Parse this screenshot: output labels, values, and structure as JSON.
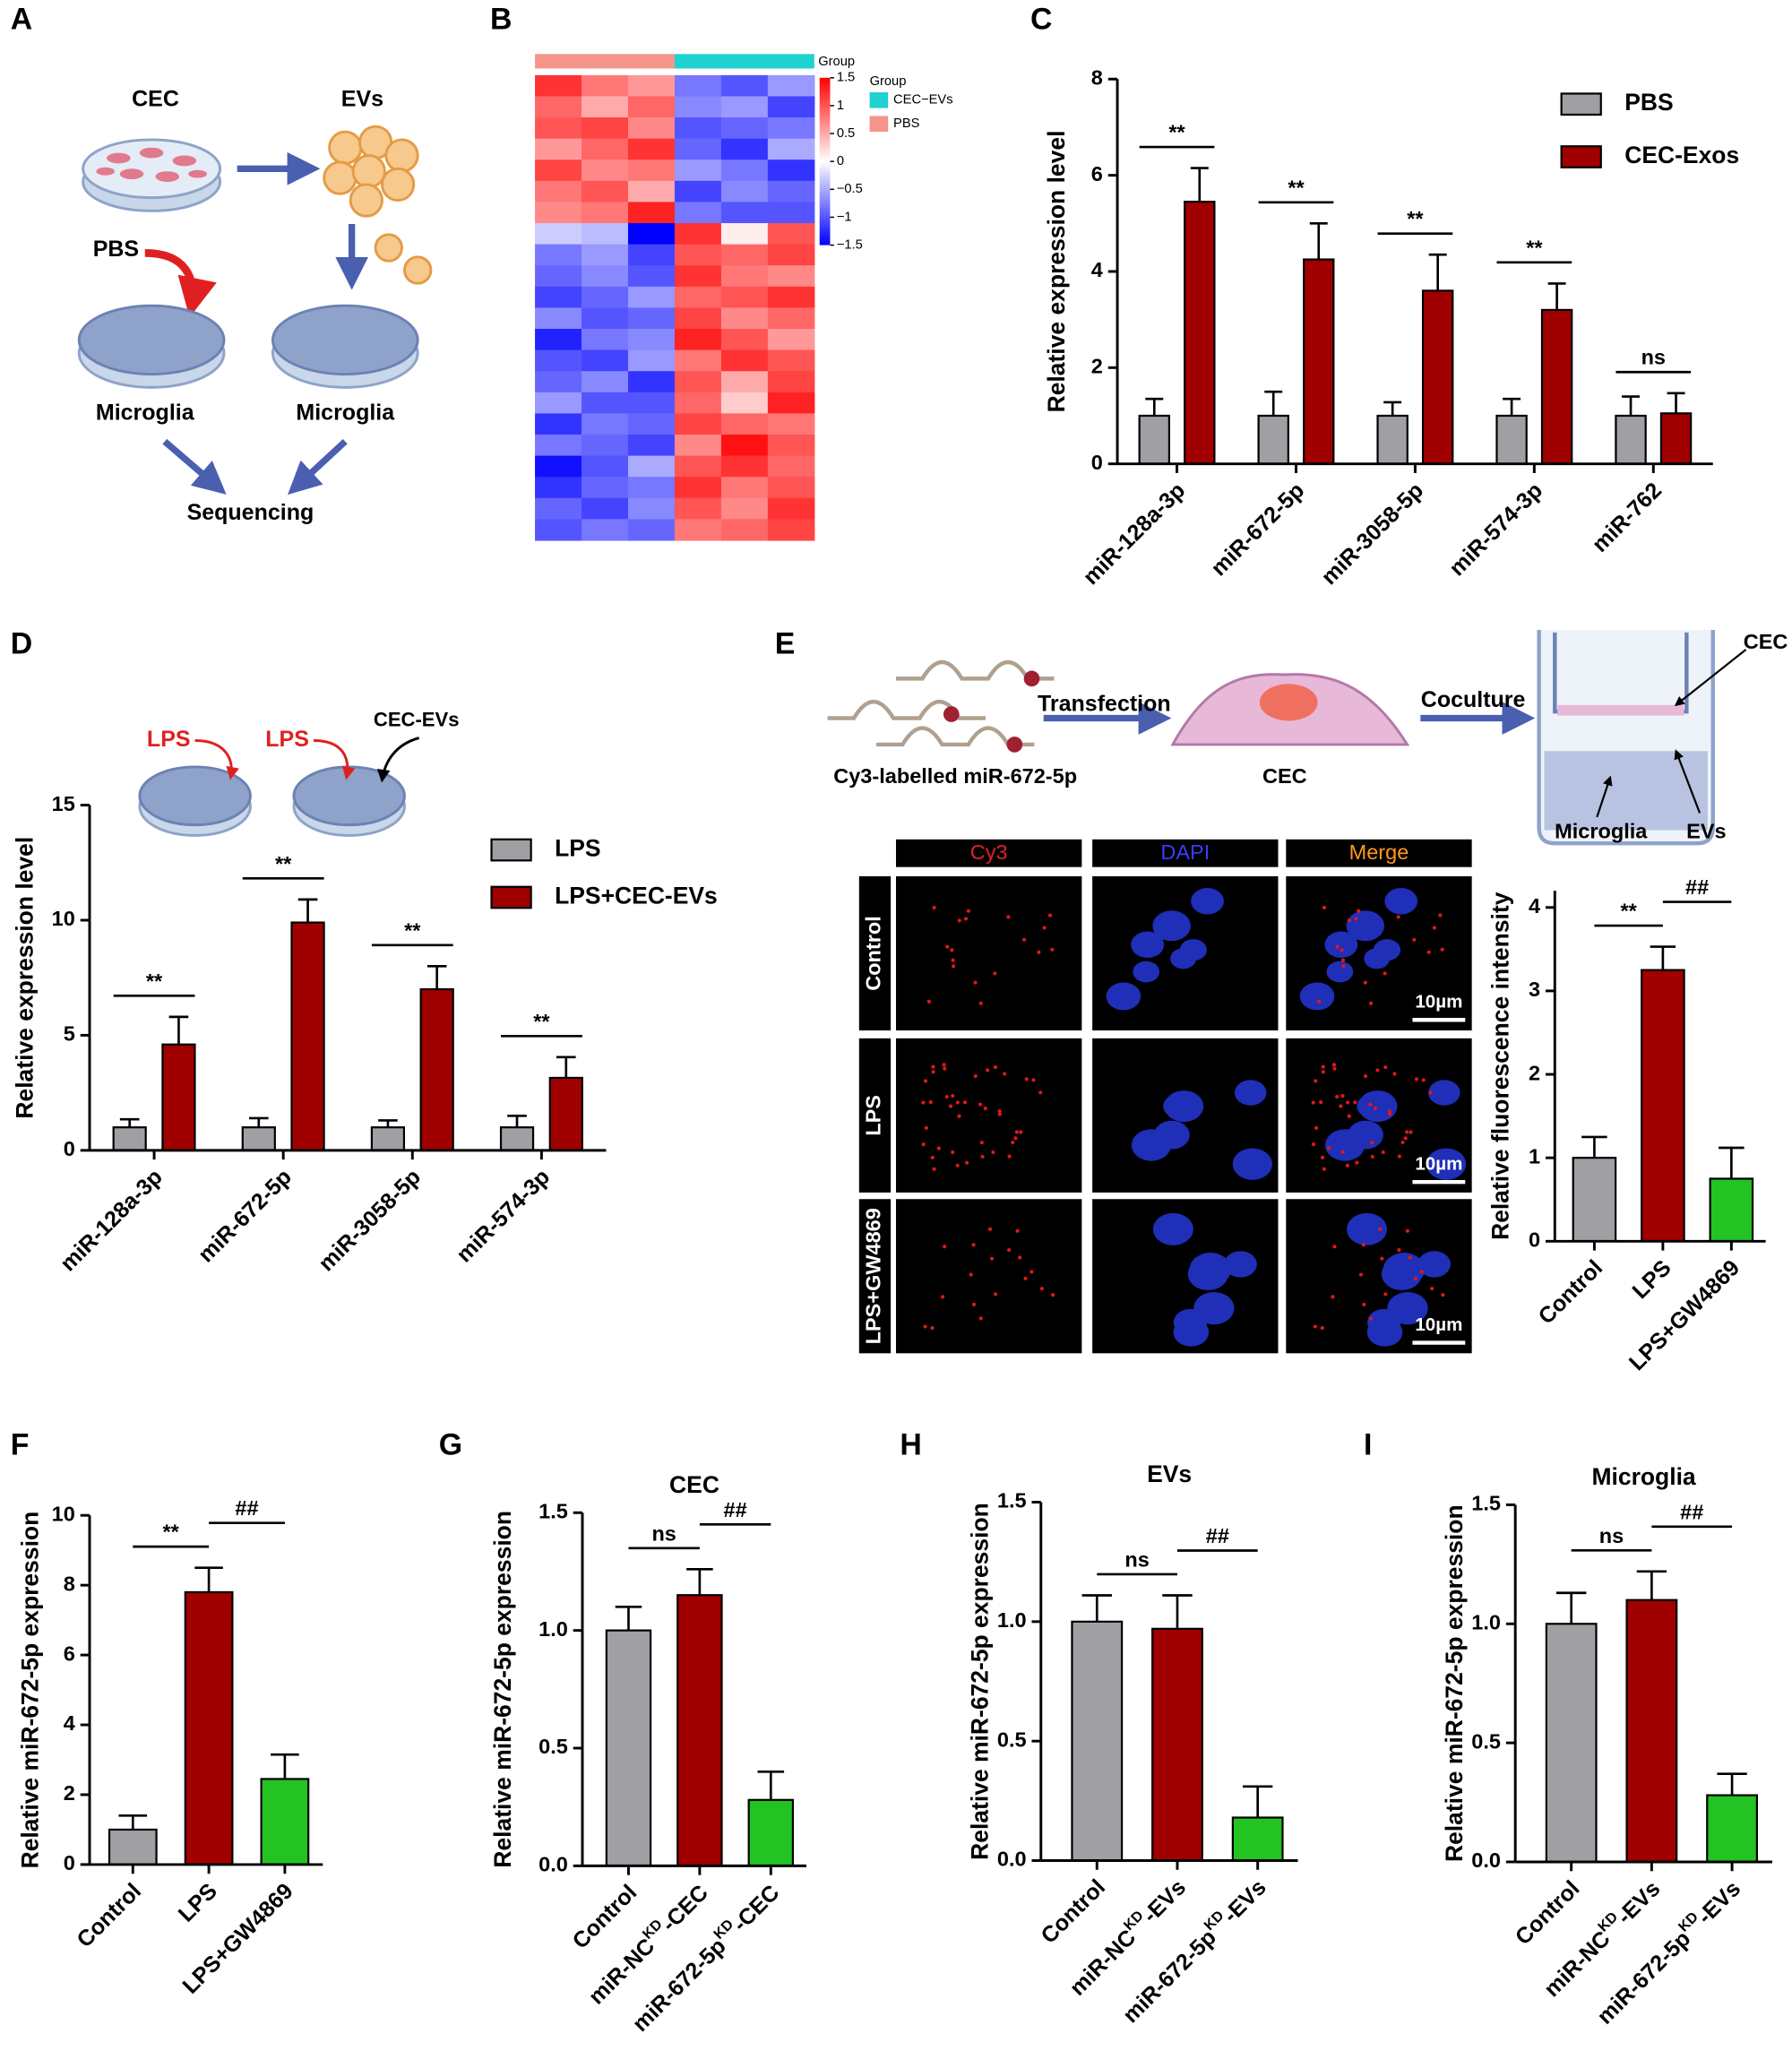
{
  "panel_labels": [
    "A",
    "B",
    "C",
    "D",
    "E",
    "F",
    "G",
    "H",
    "I"
  ],
  "diagram_a": {
    "cec": "CEC",
    "evs": "EVs",
    "pbs": "PBS",
    "microglia_left": "Microglia",
    "microglia_right": "Microglia",
    "sequencing": "Sequencing"
  },
  "diagram_d": {
    "lps_1": "LPS",
    "lps_2": "LPS",
    "cec_evs": "CEC-EVs"
  },
  "diagram_e": {
    "transfection": "Transfection",
    "coculture": "Coculture",
    "probe": "Cy3-labelled miR-672-5p",
    "cell": "CEC",
    "insert": "CEC",
    "microglia": "Microglia",
    "evs": "EVs"
  },
  "micrographs": {
    "headers": [
      "Cy3",
      "DAPI",
      "Merge"
    ],
    "rows": [
      "Control",
      "LPS",
      "LPS+GW4869"
    ],
    "scale_bar": "10µm"
  },
  "chart_data": [
    {
      "type": "heatmap",
      "group_label": "Group",
      "legend_title": "Group",
      "groups": [
        {
          "name": "PBS",
          "color": "#f4948a"
        },
        {
          "name": "CEC−EVs",
          "color": "#1fd1d1"
        }
      ],
      "colorscale": {
        "low": "#0000ff",
        "mid": "#ffffff",
        "high": "#ff0000"
      },
      "colorbar": {
        "lim": [
          -1.5,
          1.5
        ],
        "ticks": [
          1.5,
          1,
          0.5,
          0,
          {
            "value": -0.5,
            "label": "−0.5"
          },
          {
            "value": -1,
            "label": "−1"
          },
          {
            "value": -1.5,
            "label": "−1.5"
          }
        ]
      },
      "values": [
        [
          1.2,
          0.8,
          0.6,
          -0.8,
          -1.0,
          -0.6
        ],
        [
          0.9,
          0.5,
          0.9,
          -0.7,
          -0.6,
          -1.1
        ],
        [
          1.0,
          1.1,
          0.7,
          -1.0,
          -0.9,
          -0.8
        ],
        [
          0.6,
          0.9,
          1.2,
          -0.9,
          -1.2,
          -0.5
        ],
        [
          1.1,
          0.7,
          0.8,
          -0.6,
          -0.8,
          -1.2
        ],
        [
          0.8,
          1.0,
          0.5,
          -1.1,
          -0.7,
          -0.9
        ],
        [
          0.7,
          0.8,
          1.3,
          -0.8,
          -1.0,
          -1.0
        ],
        [
          -0.3,
          -0.4,
          -1.5,
          1.2,
          0.1,
          1.0
        ],
        [
          -0.8,
          -0.6,
          -1.1,
          1.0,
          0.9,
          1.1
        ],
        [
          -0.9,
          -0.7,
          -1.0,
          1.2,
          0.8,
          0.7
        ],
        [
          -1.1,
          -0.9,
          -0.6,
          0.9,
          1.0,
          1.2
        ],
        [
          -0.7,
          -1.0,
          -0.9,
          1.1,
          0.7,
          0.9
        ],
        [
          -1.3,
          -0.8,
          -0.7,
          1.3,
          1.0,
          0.6
        ],
        [
          -1.0,
          -1.1,
          -0.6,
          0.8,
          1.2,
          1.0
        ],
        [
          -0.9,
          -0.7,
          -1.2,
          1.0,
          0.5,
          1.1
        ],
        [
          -0.6,
          -1.0,
          -1.0,
          0.9,
          0.3,
          1.3
        ],
        [
          -1.2,
          -0.8,
          -0.9,
          1.1,
          0.9,
          0.8
        ],
        [
          -0.8,
          -0.9,
          -1.1,
          0.7,
          1.4,
          1.0
        ],
        [
          -1.4,
          -1.0,
          -0.5,
          1.0,
          1.2,
          0.9
        ],
        [
          -1.2,
          -0.9,
          -0.8,
          1.2,
          0.8,
          1.0
        ],
        [
          -0.9,
          -1.1,
          -0.7,
          1.0,
          0.7,
          1.2
        ],
        [
          -1.0,
          -0.8,
          -0.9,
          0.8,
          0.9,
          1.1
        ]
      ]
    },
    {
      "type": "bar",
      "ylabel": "Relative expression level",
      "categories": [
        "miR-128a-3p",
        "miR-672-5p",
        "miR-3058-5p",
        "miR-574-3p",
        "miR-762"
      ],
      "series": [
        {
          "name": "PBS",
          "color": "#a0a0a4",
          "values": [
            1,
            1,
            1,
            1,
            1
          ],
          "errors": [
            0.35,
            0.5,
            0.28,
            0.35,
            0.4
          ]
        },
        {
          "name": "CEC-Exos",
          "color": "#a00000",
          "values": [
            5.45,
            4.25,
            3.6,
            3.2,
            1.05
          ],
          "errors": [
            0.7,
            0.75,
            0.75,
            0.55,
            0.42
          ]
        }
      ],
      "annotations": [
        "**",
        "**",
        "**",
        "**",
        "ns"
      ],
      "ylim": [
        0,
        8
      ],
      "yticks": [
        0,
        2,
        4,
        6,
        8
      ]
    },
    {
      "type": "bar",
      "ylabel": "Relative expression level",
      "categories": [
        "miR-128a-3p",
        "miR-672-5p",
        "miR-3058-5p",
        "miR-574-3p"
      ],
      "series": [
        {
          "name": "LPS",
          "color": "#a0a0a4",
          "values": [
            1,
            1,
            1,
            1
          ],
          "errors": [
            0.35,
            0.4,
            0.3,
            0.5
          ]
        },
        {
          "name": "LPS+CEC-EVs",
          "color": "#a00000",
          "values": [
            4.6,
            9.9,
            7.0,
            3.15
          ],
          "errors": [
            1.2,
            1.0,
            1.0,
            0.9
          ]
        }
      ],
      "annotations": [
        "**",
        "**",
        "**",
        "**"
      ],
      "ylim": [
        0,
        15
      ],
      "yticks": [
        0,
        5,
        10,
        15
      ]
    },
    {
      "type": "bar",
      "ylabel": "Relative fluorescence intensity",
      "categories": [
        "Control",
        "LPS",
        "LPS+GW4869"
      ],
      "series": [
        {
          "colors": [
            "#a0a0a4",
            "#a00000",
            "#22c322"
          ],
          "values": [
            1,
            3.25,
            0.75
          ],
          "errors": [
            0.25,
            0.28,
            0.37
          ]
        }
      ],
      "annotations": [
        "**",
        "##"
      ],
      "ylim": [
        0,
        4.2
      ],
      "yticks": [
        0,
        1,
        2,
        3,
        4
      ]
    },
    {
      "type": "bar",
      "ylabel": "Relative miR-672-5p expression",
      "categories": [
        "Control",
        "LPS",
        "LPS+GW4869"
      ],
      "series": [
        {
          "colors": [
            "#a0a0a4",
            "#a00000",
            "#22c322"
          ],
          "values": [
            1,
            7.8,
            2.45
          ],
          "errors": [
            0.4,
            0.7,
            0.7
          ]
        }
      ],
      "annotations": [
        "**",
        "##"
      ],
      "ylim": [
        0,
        10
      ],
      "yticks": [
        0,
        2,
        4,
        6,
        8,
        10
      ]
    },
    {
      "type": "bar",
      "title": "CEC",
      "ylabel": "Relative miR-672-5p expression",
      "categories": [
        "Control",
        [
          "miR-NC",
          "KD",
          "-CEC"
        ],
        [
          "miR-672-5p",
          "KD",
          "-CEC"
        ]
      ],
      "series": [
        {
          "colors": [
            "#a0a0a4",
            "#a00000",
            "#22c322"
          ],
          "values": [
            1,
            1.15,
            0.28
          ],
          "errors": [
            0.1,
            0.11,
            0.12
          ]
        }
      ],
      "annotations": [
        "ns",
        "##"
      ],
      "ylim": [
        0,
        1.5
      ],
      "yticks": [
        {
          "value": 0,
          "label": "0.0"
        },
        0.5,
        {
          "value": 1,
          "label": "1.0"
        },
        1.5
      ]
    },
    {
      "type": "bar",
      "title": "EVs",
      "ylabel": "Relative miR-672-5p expression",
      "categories": [
        "Control",
        [
          "miR-NC",
          "KD",
          "-EVs"
        ],
        [
          "miR-672-5p",
          "KD",
          "-EVs"
        ]
      ],
      "series": [
        {
          "colors": [
            "#a0a0a4",
            "#a00000",
            "#22c322"
          ],
          "values": [
            1,
            0.97,
            0.18
          ],
          "errors": [
            0.11,
            0.14,
            0.13
          ]
        }
      ],
      "annotations": [
        "ns",
        "##"
      ],
      "ylim": [
        0,
        1.5
      ],
      "yticks": [
        {
          "value": 0,
          "label": "0.0"
        },
        0.5,
        {
          "value": 1,
          "label": "1.0"
        },
        1.5
      ]
    },
    {
      "type": "bar",
      "title": "Microglia",
      "ylabel": "Relative miR-672-5p expression",
      "categories": [
        "Control",
        [
          "miR-NC",
          "KD",
          "-EVs"
        ],
        [
          "miR-672-5p",
          "KD",
          "-EVs"
        ]
      ],
      "series": [
        {
          "colors": [
            "#a0a0a4",
            "#a00000",
            "#22c322"
          ],
          "values": [
            1,
            1.1,
            0.28
          ],
          "errors": [
            0.13,
            0.12,
            0.09
          ]
        }
      ],
      "annotations": [
        "ns",
        "##"
      ],
      "ylim": [
        0,
        1.5
      ],
      "yticks": [
        {
          "value": 0,
          "label": "0.0"
        },
        0.5,
        {
          "value": 1,
          "label": "1.0"
        },
        1.5
      ]
    }
  ]
}
